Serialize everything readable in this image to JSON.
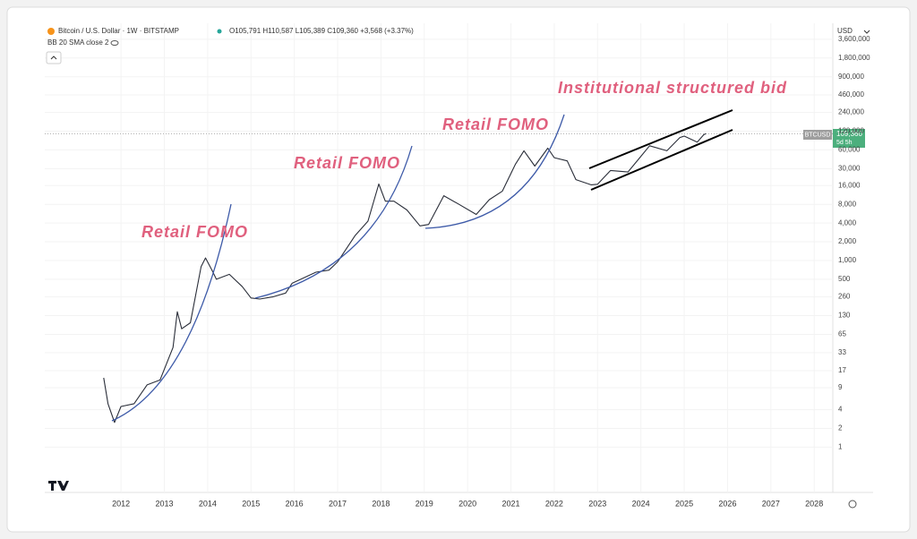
{
  "chart_data": {
    "type": "line",
    "title": "Bitcoin / U.S. Dollar · 1W · BITSTAMP",
    "ohlc_text": "O105,791 H110,587 L105,389 C109,360 +3,568 (+3.37%)",
    "indicator": "BB 20 SMA close 2",
    "currency": "USD",
    "symbol_label": "BTCUSD",
    "last_price_label": "109,360",
    "countdown": "5d 5h",
    "annotations": [
      "Retail FOMO",
      "Retail FOMO",
      "Retail FOMO",
      "Institutional structured bid"
    ],
    "log_scale": true,
    "grid": true,
    "xlim": [
      2010.24,
      2028.43
    ],
    "xticks": [
      2012,
      2013,
      2014,
      2015,
      2016,
      2017,
      2018,
      2019,
      2020,
      2021,
      2022,
      2023,
      2024,
      2025,
      2026,
      2027,
      2028
    ],
    "ylim": [
      0.2,
      5700000
    ],
    "yticks": [
      1,
      2,
      4,
      9,
      17,
      33,
      65,
      130,
      260,
      500,
      {
        "value": 1000,
        "label": "1,000"
      },
      {
        "value": 2000,
        "label": "2,000"
      },
      {
        "value": 4000,
        "label": "4,000"
      },
      {
        "value": 8000,
        "label": "8,000"
      },
      {
        "value": 16000,
        "label": "16,000"
      },
      {
        "value": 30000,
        "label": "30,000"
      },
      {
        "value": 60000,
        "label": "60,000"
      },
      {
        "value": 120000,
        "label": "120,000"
      },
      {
        "value": 240000,
        "label": "240,000"
      },
      {
        "value": 460000,
        "label": "460,000"
      },
      {
        "value": 900000,
        "label": "900,000"
      },
      {
        "value": 1800000,
        "label": "1,800,000"
      },
      {
        "value": 3600000,
        "label": "3,600,000"
      }
    ],
    "x": [
      2011.6,
      2011.7,
      2011.85,
      2012.0,
      2012.3,
      2012.6,
      2012.9,
      2013.2,
      2013.3,
      2013.4,
      2013.6,
      2013.85,
      2013.95,
      2014.1,
      2014.2,
      2014.5,
      2014.8,
      2015.0,
      2015.2,
      2015.5,
      2015.8,
      2015.95,
      2016.5,
      2016.8,
      2017.0,
      2017.4,
      2017.7,
      2017.95,
      2018.1,
      2018.3,
      2018.6,
      2018.9,
      2019.1,
      2019.45,
      2019.8,
      2020.2,
      2020.5,
      2020.8,
      2021.1,
      2021.3,
      2021.55,
      2021.85,
      2022.0,
      2022.3,
      2022.5,
      2022.85,
      2023.0,
      2023.3,
      2023.7,
      2023.95,
      2024.2,
      2024.6,
      2024.9,
      2025.0,
      2025.3,
      2025.45,
      2025.5
    ],
    "series": [
      {
        "name": "BTCUSD",
        "color": "#2a2e39",
        "values": [
          13,
          5,
          2.5,
          4.5,
          5,
          10,
          12,
          40,
          150,
          80,
          100,
          800,
          1100,
          700,
          500,
          600,
          380,
          250,
          240,
          260,
          300,
          430,
          650,
          700,
          950,
          2500,
          4300,
          17000,
          9000,
          9000,
          6500,
          3600,
          3800,
          11000,
          8000,
          5500,
          9500,
          13000,
          35000,
          58000,
          33000,
          64000,
          45000,
          40000,
          20000,
          16500,
          16800,
          28000,
          26500,
          43000,
          70000,
          58000,
          95000,
          100000,
          80000,
          105000,
          109360
        ]
      }
    ]
  }
}
